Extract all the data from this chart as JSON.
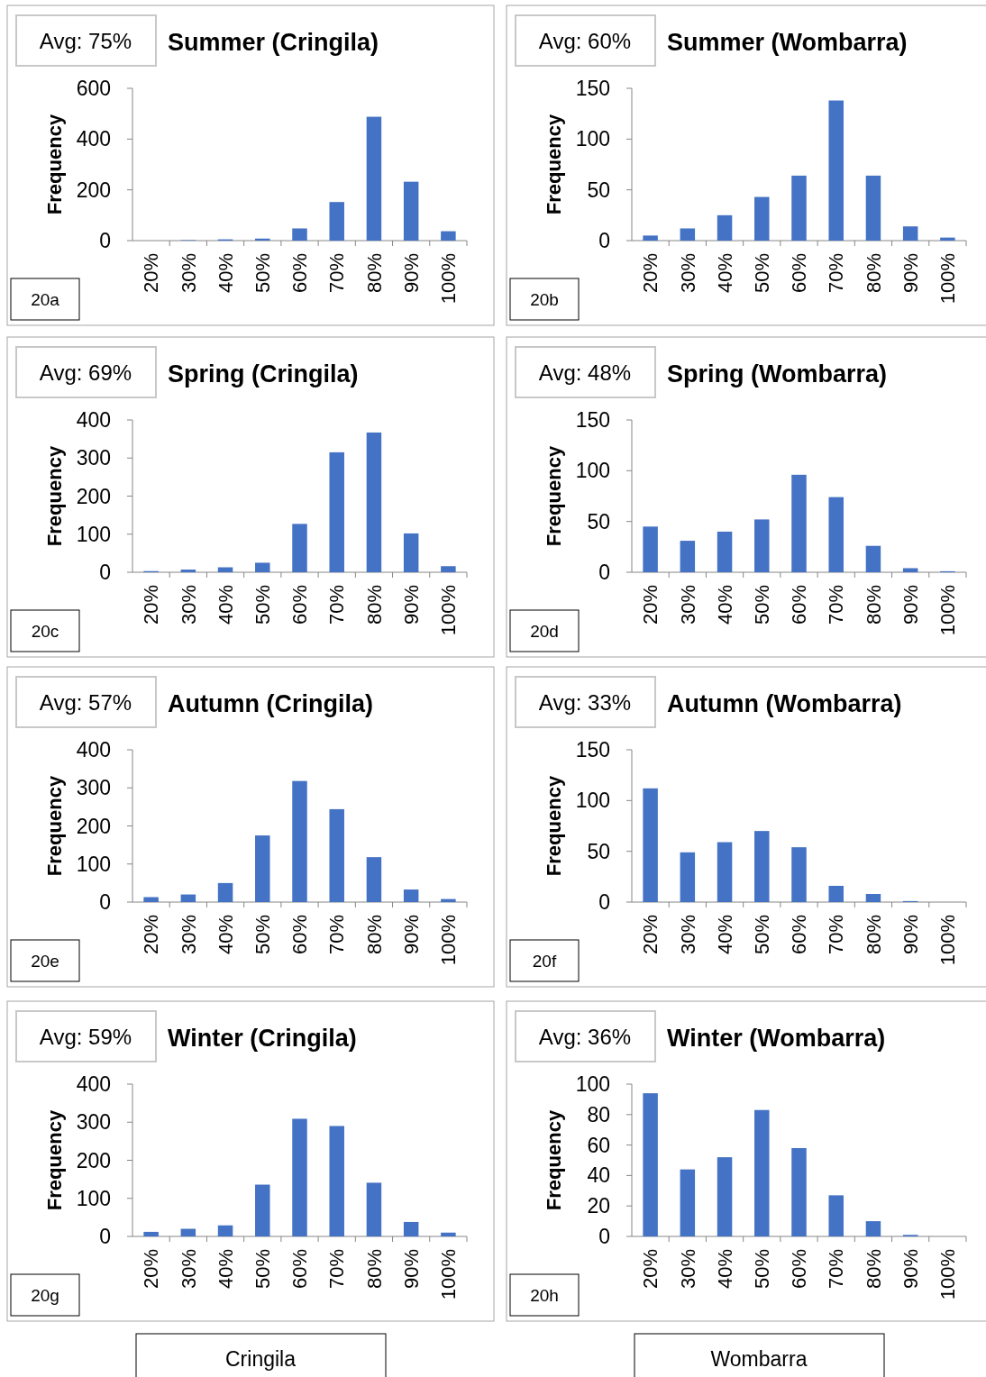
{
  "chart_data": [
    {
      "type": "bar",
      "title": "Summer (Cringila)",
      "ylabel": "Frequency",
      "categories": [
        "20%",
        "30%",
        "40%",
        "50%",
        "60%",
        "70%",
        "80%",
        "90%",
        "100%"
      ],
      "values": [
        0,
        2,
        5,
        8,
        48,
        152,
        488,
        232,
        37
      ],
      "color": "#4472c4",
      "ylim": [
        0,
        600
      ],
      "yticks": [
        0,
        200,
        400,
        600
      ],
      "annotations": [
        "Avg: 75%",
        "20a"
      ]
    },
    {
      "type": "bar",
      "title": "Summer (Wombarra)",
      "ylabel": "Frequency",
      "categories": [
        "20%",
        "30%",
        "40%",
        "50%",
        "60%",
        "70%",
        "80%",
        "90%",
        "100%"
      ],
      "values": [
        5,
        12,
        25,
        43,
        64,
        138,
        64,
        14,
        3
      ],
      "color": "#4472c4",
      "ylim": [
        0,
        150
      ],
      "yticks": [
        0,
        50,
        100,
        150
      ],
      "annotations": [
        "Avg: 60%",
        "20b"
      ]
    },
    {
      "type": "bar",
      "title": "Spring (Cringila)",
      "ylabel": "Frequency",
      "categories": [
        "20%",
        "30%",
        "40%",
        "50%",
        "60%",
        "70%",
        "80%",
        "90%",
        "100%"
      ],
      "values": [
        3,
        7,
        13,
        25,
        127,
        315,
        367,
        102,
        16
      ],
      "color": "#4472c4",
      "ylim": [
        0,
        400
      ],
      "yticks": [
        0,
        100,
        200,
        300,
        400
      ],
      "annotations": [
        "Avg: 69%",
        "20c"
      ]
    },
    {
      "type": "bar",
      "title": "Spring (Wombarra)",
      "ylabel": "Frequency",
      "categories": [
        "20%",
        "30%",
        "40%",
        "50%",
        "60%",
        "70%",
        "80%",
        "90%",
        "100%"
      ],
      "values": [
        45,
        31,
        40,
        52,
        96,
        74,
        26,
        4,
        1
      ],
      "color": "#4472c4",
      "ylim": [
        0,
        150
      ],
      "yticks": [
        0,
        50,
        100,
        150
      ],
      "annotations": [
        "Avg: 48%",
        "20d"
      ]
    },
    {
      "type": "bar",
      "title": "Autumn (Cringila)",
      "ylabel": "Frequency",
      "categories": [
        "20%",
        "30%",
        "40%",
        "50%",
        "60%",
        "70%",
        "80%",
        "90%",
        "100%"
      ],
      "values": [
        13,
        20,
        50,
        175,
        318,
        244,
        118,
        33,
        8
      ],
      "color": "#4472c4",
      "ylim": [
        0,
        400
      ],
      "yticks": [
        0,
        100,
        200,
        300,
        400
      ],
      "annotations": [
        "Avg: 57%",
        "20e"
      ]
    },
    {
      "type": "bar",
      "title": "Autumn (Wombarra)",
      "ylabel": "Frequency",
      "categories": [
        "20%",
        "30%",
        "40%",
        "50%",
        "60%",
        "70%",
        "80%",
        "90%",
        "100%"
      ],
      "values": [
        112,
        49,
        59,
        70,
        54,
        16,
        8,
        1,
        0
      ],
      "color": "#4472c4",
      "ylim": [
        0,
        150
      ],
      "yticks": [
        0,
        50,
        100,
        150
      ],
      "annotations": [
        "Avg: 33%",
        "20f"
      ]
    },
    {
      "type": "bar",
      "title": "Winter (Cringila)",
      "ylabel": "Frequency",
      "categories": [
        "20%",
        "30%",
        "40%",
        "50%",
        "60%",
        "70%",
        "80%",
        "90%",
        "100%"
      ],
      "values": [
        12,
        20,
        29,
        136,
        309,
        290,
        141,
        38,
        10
      ],
      "color": "#4472c4",
      "ylim": [
        0,
        400
      ],
      "yticks": [
        0,
        100,
        200,
        300,
        400
      ],
      "annotations": [
        "Avg: 59%",
        "20g",
        "Cringila"
      ]
    },
    {
      "type": "bar",
      "title": "Winter (Wombarra)",
      "ylabel": "Frequency",
      "categories": [
        "20%",
        "30%",
        "40%",
        "50%",
        "60%",
        "70%",
        "80%",
        "90%",
        "100%"
      ],
      "values": [
        94,
        44,
        52,
        83,
        58,
        27,
        10,
        1,
        0
      ],
      "color": "#4472c4",
      "ylim": [
        0,
        100
      ],
      "yticks": [
        0,
        20,
        40,
        60,
        80,
        100
      ],
      "annotations": [
        "Avg: 36%",
        "20h",
        "Wombarra"
      ]
    }
  ]
}
